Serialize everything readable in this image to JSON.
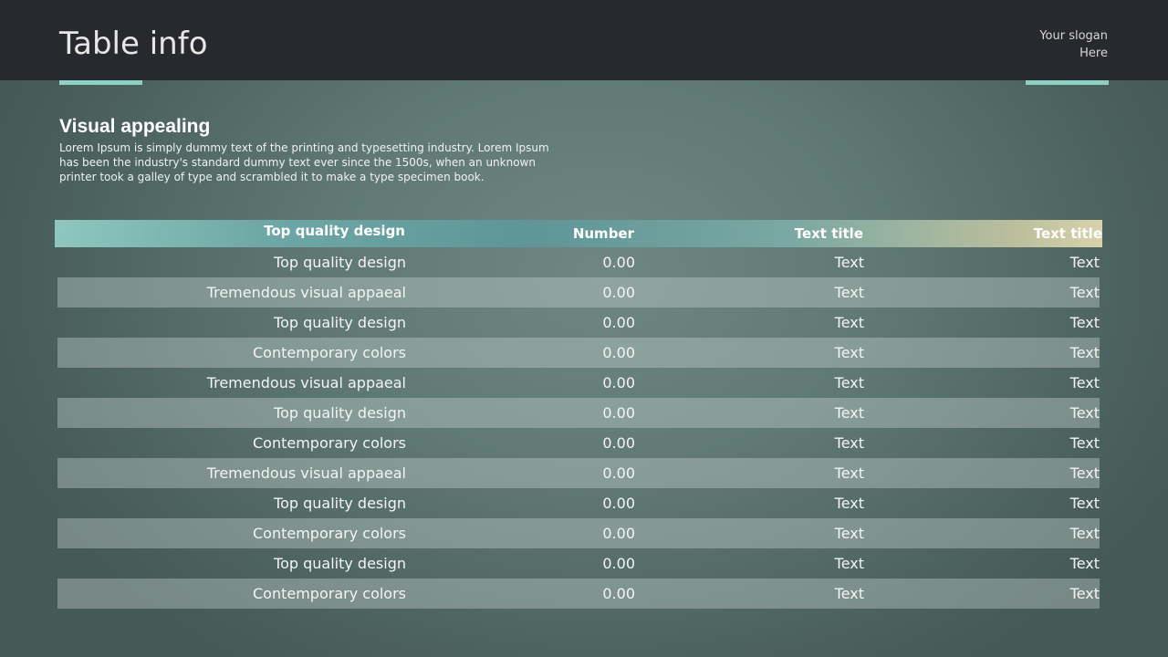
{
  "header": {
    "title": "Table info",
    "slogan_line1": "Your slogan",
    "slogan_line2": "Here"
  },
  "intro": {
    "heading": "Visual appealing",
    "body": "Lorem Ipsum is simply dummy text of the printing and typesetting industry. Lorem Ipsum has been the industry's standard dummy text ever since the 1500s, when an unknown printer took a galley of type and scrambled it to make a type specimen book."
  },
  "table": {
    "columns": [
      "Top quality design",
      "Number",
      "Text title",
      "Text title"
    ],
    "rows": [
      [
        "Top quality design",
        "0.00",
        "Text",
        "Text"
      ],
      [
        "Tremendous visual appaeal",
        "0.00",
        "Text",
        "Text"
      ],
      [
        "Top quality design",
        "0.00",
        "Text",
        "Text"
      ],
      [
        "Contemporary colors",
        "0.00",
        "Text",
        "Text"
      ],
      [
        "Tremendous visual appaeal",
        "0.00",
        "Text",
        "Text"
      ],
      [
        "Top quality design",
        "0.00",
        "Text",
        "Text"
      ],
      [
        "Contemporary colors",
        "0.00",
        "Text",
        "Text"
      ],
      [
        "Tremendous visual appaeal",
        "0.00",
        "Text",
        "Text"
      ],
      [
        "Top quality design",
        "0.00",
        "Text",
        "Text"
      ],
      [
        "Contemporary colors",
        "0.00",
        "Text",
        "Text"
      ],
      [
        "Top quality design",
        "0.00",
        "Text",
        "Text"
      ],
      [
        "Contemporary colors",
        "0.00",
        "Text",
        "Text"
      ]
    ]
  },
  "colors": {
    "topbar": "#28292e",
    "accent": "#8ed0c2"
  }
}
